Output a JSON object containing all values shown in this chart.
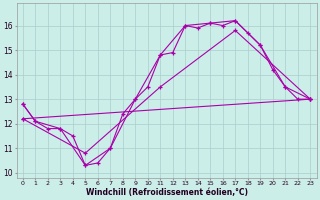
{
  "xlabel": "Windchill (Refroidissement éolien,°C)",
  "background_color": "#cceee8",
  "grid_color": "#aacccc",
  "line_color": "#aa00aa",
  "xlim": [
    -0.5,
    23.5
  ],
  "ylim": [
    9.8,
    16.9
  ],
  "yticks": [
    10,
    11,
    12,
    13,
    14,
    15,
    16
  ],
  "xticks": [
    0,
    1,
    2,
    3,
    4,
    5,
    6,
    7,
    8,
    9,
    10,
    11,
    12,
    13,
    14,
    15,
    16,
    17,
    18,
    19,
    20,
    21,
    22,
    23
  ],
  "series1_x": [
    0,
    1,
    2,
    3,
    4,
    5,
    6,
    7,
    8,
    9,
    10,
    11,
    12,
    13,
    14,
    15,
    16,
    17,
    18,
    19,
    20,
    21,
    22,
    23
  ],
  "series1_y": [
    12.8,
    12.1,
    11.8,
    11.8,
    11.5,
    10.3,
    10.4,
    11.0,
    12.4,
    13.0,
    13.5,
    14.8,
    14.9,
    16.0,
    15.9,
    16.1,
    16.0,
    16.2,
    15.7,
    15.2,
    14.2,
    13.5,
    13.0,
    13.0
  ],
  "series2_x": [
    0,
    1,
    3,
    5,
    7,
    9,
    11,
    13,
    15,
    17,
    19,
    21,
    23
  ],
  "series2_y": [
    12.8,
    12.1,
    11.8,
    10.3,
    11.0,
    13.0,
    14.8,
    16.0,
    16.1,
    16.2,
    15.2,
    13.5,
    13.0
  ],
  "series3_x": [
    0,
    5,
    11,
    17,
    23
  ],
  "series3_y": [
    12.2,
    10.8,
    13.5,
    15.8,
    13.0
  ],
  "series4_x": [
    0,
    23
  ],
  "series4_y": [
    12.2,
    13.0
  ]
}
